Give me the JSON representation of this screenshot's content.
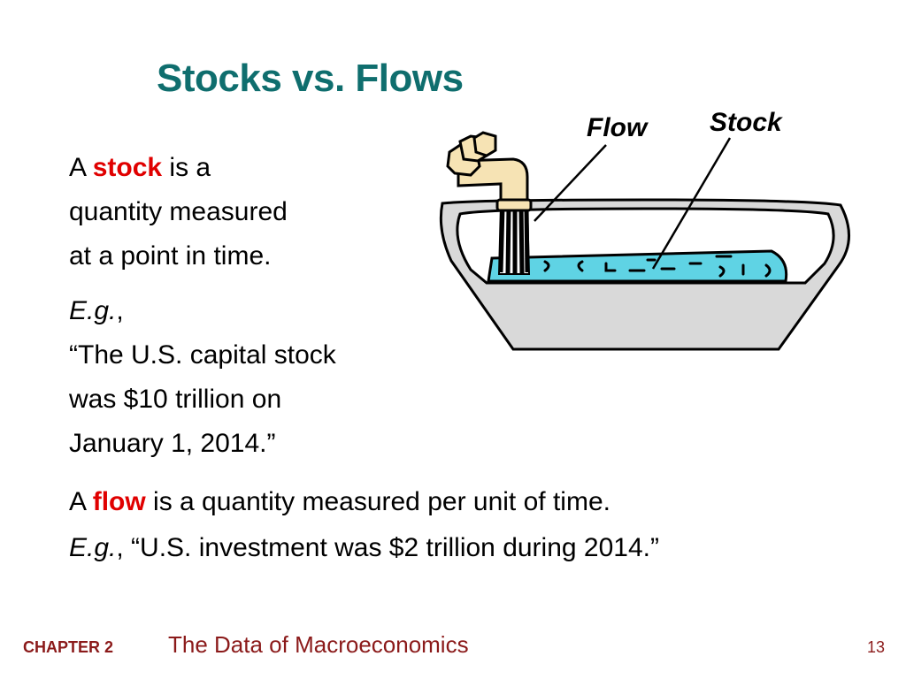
{
  "slide": {
    "title": "Stocks vs. Flows",
    "stock_def": {
      "prefix": "A ",
      "term": "stock",
      "lines": [
        " is a",
        "quantity measured",
        "at a point in time."
      ]
    },
    "stock_example": {
      "eg": "E.g.",
      "comma": ",",
      "lines": [
        "“The U.S. capital stock",
        "was $10 trillion on",
        "January 1, 2014.”"
      ]
    },
    "flow_def": {
      "prefix": "A ",
      "term": "flow",
      "rest": " is a quantity measured per unit of time."
    },
    "flow_example": {
      "eg": "E.g.",
      "rest": ", “U.S. investment was $2 trillion during 2014.”"
    },
    "illustration": {
      "flow_label": "Flow",
      "stock_label": "Stock"
    }
  },
  "footer": {
    "chapter": "CHAPTER 2",
    "title": "The Data of Macroeconomics",
    "page": "13"
  },
  "colors": {
    "title": "#0f6e6e",
    "highlight": "#e00000",
    "footer": "#8b1a1a",
    "water": "#5fd3e4",
    "tub": "#d9d9d9",
    "faucet": "#f6e3b4"
  }
}
